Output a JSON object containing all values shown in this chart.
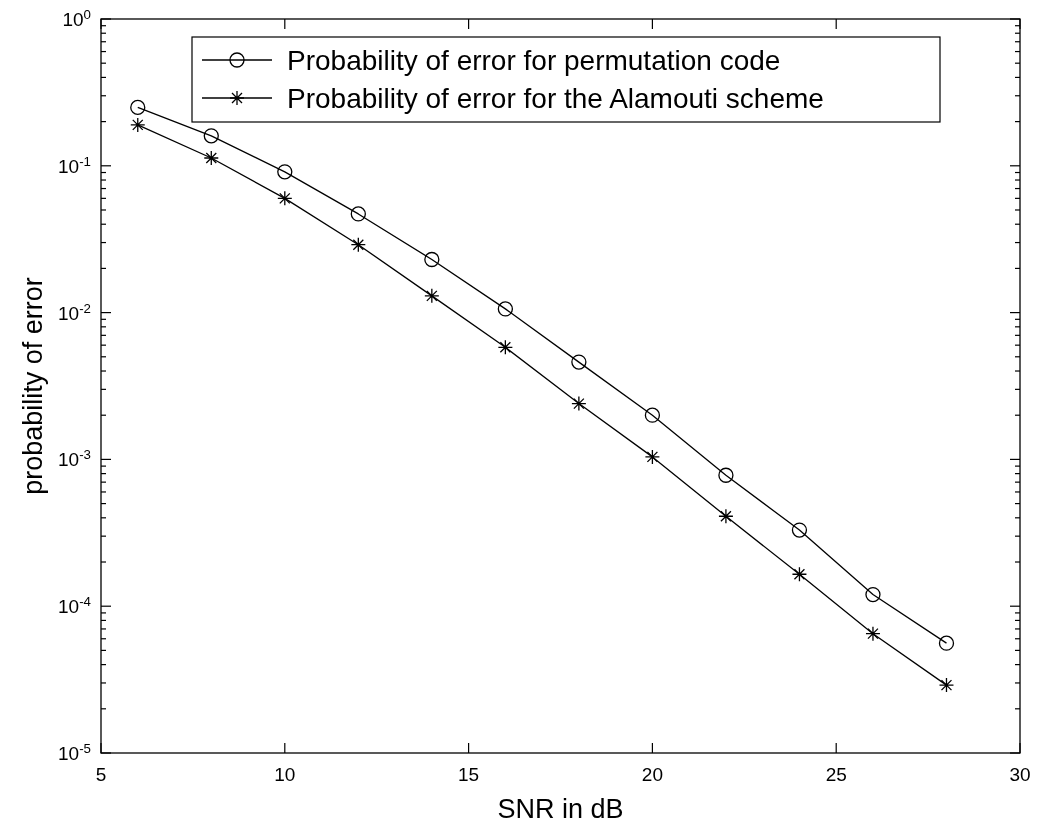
{
  "chart_data": {
    "type": "line",
    "xlabel": "SNR in dB",
    "ylabel": "probability of error",
    "x": [
      6,
      8,
      10,
      12,
      14,
      16,
      18,
      20,
      22,
      24,
      26,
      28
    ],
    "series": [
      {
        "name": "Probability of error for permutation code",
        "color": "#000000",
        "marker": "circle",
        "values": [
          0.25,
          0.16,
          0.091,
          0.047,
          0.023,
          0.0106,
          0.0046,
          0.002,
          0.00078,
          0.00033,
          0.00012,
          5.6e-05
        ]
      },
      {
        "name": "Probability of error for the Alamouti scheme",
        "color": "#000000",
        "marker": "cross",
        "values": [
          0.19,
          0.113,
          0.06,
          0.029,
          0.013,
          0.0058,
          0.0024,
          0.00104,
          0.00041,
          0.000165,
          6.5e-05,
          2.9e-05
        ]
      }
    ],
    "xlim": [
      5,
      30
    ],
    "xticks": [
      5,
      10,
      15,
      20,
      25,
      30
    ],
    "ylim": [
      1e-05,
      1
    ],
    "log": "y",
    "yticks": [
      {
        "value": 1e-05,
        "label": "10$^{-5}$"
      },
      {
        "value": 2e-05,
        "label": null
      },
      {
        "value": 3e-05,
        "label": null
      },
      {
        "value": 4e-05,
        "label": null
      },
      {
        "value": 5e-05,
        "label": null
      },
      {
        "value": 6e-05,
        "label": null
      },
      {
        "value": 7e-05,
        "label": null
      },
      {
        "value": 8e-05,
        "label": null
      },
      {
        "value": 9e-05,
        "label": null
      },
      {
        "value": 0.0001,
        "label": "10$^{-4}$"
      },
      {
        "value": 0.0002,
        "label": null
      },
      {
        "value": 0.0003,
        "label": null
      },
      {
        "value": 0.0004,
        "label": null
      },
      {
        "value": 0.0005,
        "label": null
      },
      {
        "value": 0.0006,
        "label": null
      },
      {
        "value": 0.0007,
        "label": null
      },
      {
        "value": 0.0008,
        "label": null
      },
      {
        "value": 0.0009,
        "label": null
      },
      {
        "value": 0.001,
        "label": "10$^{-3}$"
      },
      {
        "value": 0.002,
        "label": null
      },
      {
        "value": 0.003,
        "label": null
      },
      {
        "value": 0.004,
        "label": null
      },
      {
        "value": 0.005,
        "label": null
      },
      {
        "value": 0.006,
        "label": null
      },
      {
        "value": 0.007,
        "label": null
      },
      {
        "value": 0.008,
        "label": null
      },
      {
        "value": 0.009,
        "label": null
      },
      {
        "value": 0.01,
        "label": "10$^{-2}$"
      },
      {
        "value": 0.02,
        "label": null
      },
      {
        "value": 0.03,
        "label": null
      },
      {
        "value": 0.04,
        "label": null
      },
      {
        "value": 0.05,
        "label": null
      },
      {
        "value": 0.06,
        "label": null
      },
      {
        "value": 0.07,
        "label": null
      },
      {
        "value": 0.08,
        "label": null
      },
      {
        "value": 0.09,
        "label": null
      },
      {
        "value": 0.1,
        "label": "10$^{-1}$"
      },
      {
        "value": 0.2,
        "label": null
      },
      {
        "value": 0.3,
        "label": null
      },
      {
        "value": 0.4,
        "label": null
      },
      {
        "value": 0.5,
        "label": null
      },
      {
        "value": 0.6,
        "label": null
      },
      {
        "value": 0.7,
        "label": null
      },
      {
        "value": 0.8,
        "label": null
      },
      {
        "value": 0.9,
        "label": null
      },
      {
        "value": 1,
        "label": "10$^{0}$"
      }
    ],
    "grid": false,
    "legend": "top",
    "line_style": "solid"
  }
}
